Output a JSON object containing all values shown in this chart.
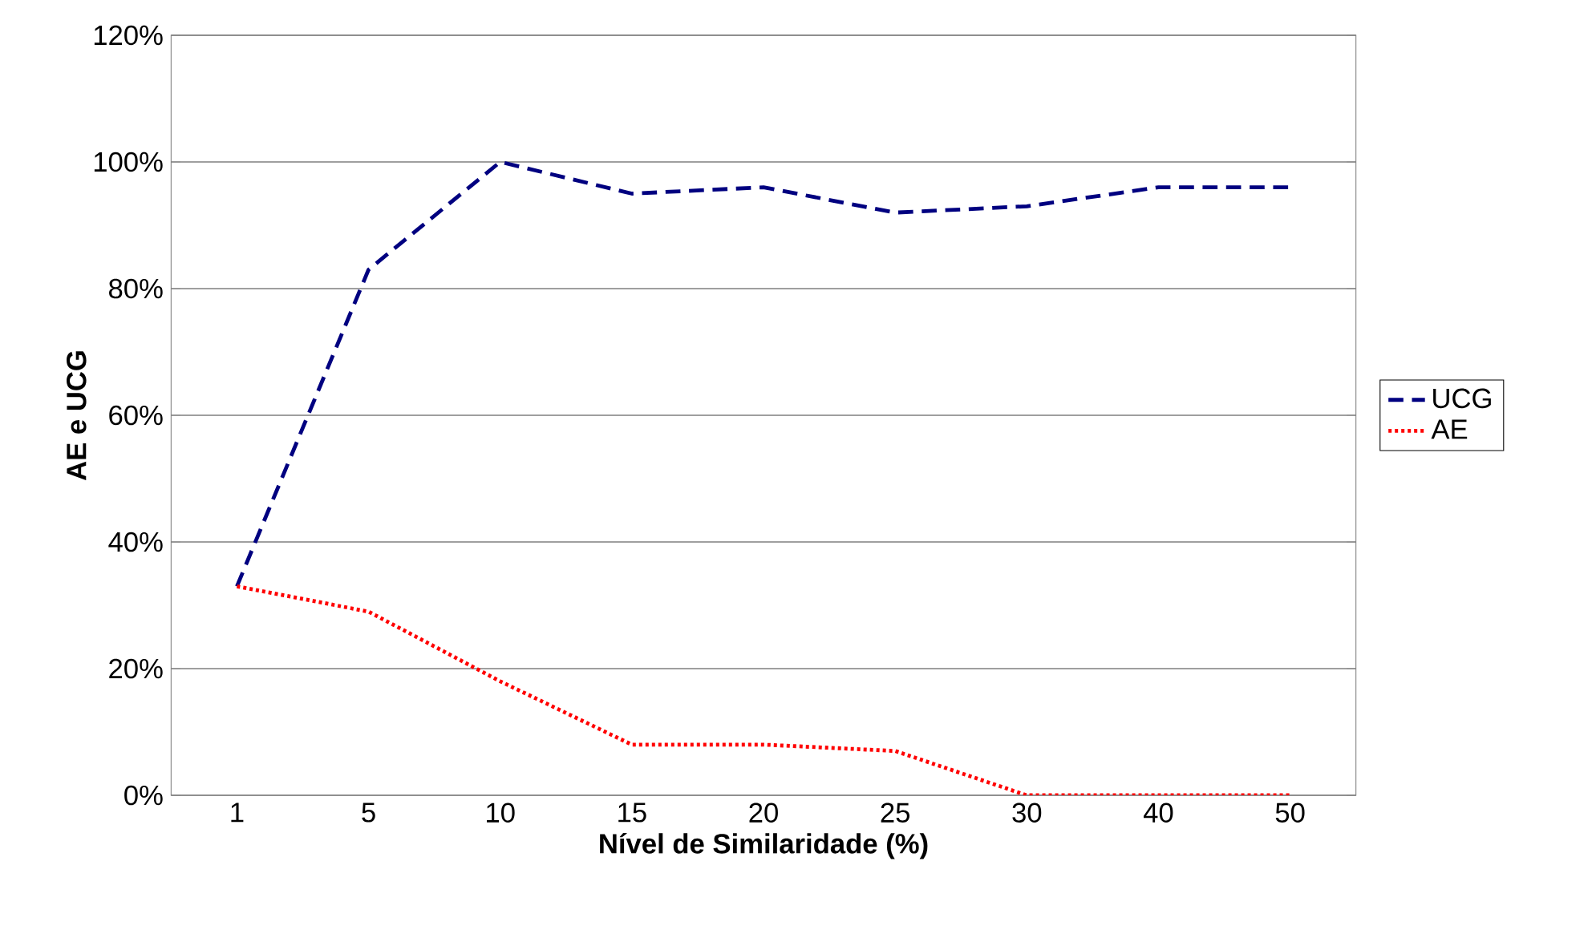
{
  "chart_data": {
    "type": "line",
    "xlabel": "Nível de Similaridade (%)",
    "ylabel": "AE e UCG",
    "categories": [
      "1",
      "5",
      "10",
      "15",
      "20",
      "25",
      "30",
      "40",
      "50"
    ],
    "series": [
      {
        "name": "UCG",
        "color": "#000080",
        "line_style": "dashed",
        "values": [
          33,
          83,
          100,
          95,
          96,
          92,
          93,
          96,
          96
        ]
      },
      {
        "name": "AE",
        "color": "#ff0000",
        "line_style": "dotted",
        "values": [
          33,
          29,
          18,
          8,
          8,
          7,
          0,
          0,
          0
        ]
      }
    ],
    "ylim": [
      0,
      120
    ],
    "yticks": [
      {
        "value": 0,
        "label": "0%"
      },
      {
        "value": 20,
        "label": "20%"
      },
      {
        "value": 40,
        "label": "40%"
      },
      {
        "value": 60,
        "label": "60%"
      },
      {
        "value": 80,
        "label": "80%"
      },
      {
        "value": 100,
        "label": "100%"
      },
      {
        "value": 120,
        "label": "120%"
      }
    ],
    "grid": "y",
    "legend": "right",
    "marker": "none"
  }
}
